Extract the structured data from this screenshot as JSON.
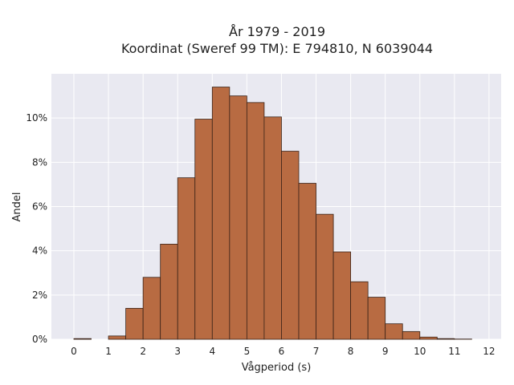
{
  "chart_data": {
    "type": "bar",
    "title": "År 1979 - 2019",
    "subtitle": "Koordinat (Sweref 99 TM): E 794810, N 6039044",
    "xlabel": "Vågperiod (s)",
    "ylabel": "Andel",
    "xlim": [
      -0.65,
      12.35
    ],
    "ylim": [
      0,
      0.12
    ],
    "xticks": [
      0,
      1,
      2,
      3,
      4,
      5,
      6,
      7,
      8,
      9,
      10,
      11,
      12
    ],
    "xtick_labels": [
      "0",
      "1",
      "2",
      "3",
      "4",
      "5",
      "6",
      "7",
      "8",
      "9",
      "10",
      "11",
      "12"
    ],
    "yticks": [
      0,
      0.02,
      0.04,
      0.06,
      0.08,
      0.1
    ],
    "ytick_labels": [
      "0%",
      "2%",
      "4%",
      "6%",
      "8%",
      "10%"
    ],
    "grid": true,
    "bin_width": 0.5,
    "bins": [
      {
        "x0": 0.0,
        "x1": 0.5,
        "value": 0.0003
      },
      {
        "x0": 0.5,
        "x1": 1.0,
        "value": 0.0
      },
      {
        "x0": 1.0,
        "x1": 1.5,
        "value": 0.0015
      },
      {
        "x0": 1.5,
        "x1": 2.0,
        "value": 0.014
      },
      {
        "x0": 2.0,
        "x1": 2.5,
        "value": 0.028
      },
      {
        "x0": 2.5,
        "x1": 3.0,
        "value": 0.043
      },
      {
        "x0": 3.0,
        "x1": 3.5,
        "value": 0.073
      },
      {
        "x0": 3.5,
        "x1": 4.0,
        "value": 0.0995
      },
      {
        "x0": 4.0,
        "x1": 4.5,
        "value": 0.114
      },
      {
        "x0": 4.5,
        "x1": 5.0,
        "value": 0.11
      },
      {
        "x0": 5.0,
        "x1": 5.5,
        "value": 0.107
      },
      {
        "x0": 5.5,
        "x1": 6.0,
        "value": 0.1005
      },
      {
        "x0": 6.0,
        "x1": 6.5,
        "value": 0.085
      },
      {
        "x0": 6.5,
        "x1": 7.0,
        "value": 0.0705
      },
      {
        "x0": 7.0,
        "x1": 7.5,
        "value": 0.0565
      },
      {
        "x0": 7.5,
        "x1": 8.0,
        "value": 0.0395
      },
      {
        "x0": 8.0,
        "x1": 8.5,
        "value": 0.026
      },
      {
        "x0": 8.5,
        "x1": 9.0,
        "value": 0.019
      },
      {
        "x0": 9.0,
        "x1": 9.5,
        "value": 0.007
      },
      {
        "x0": 9.5,
        "x1": 10.0,
        "value": 0.0035
      },
      {
        "x0": 10.0,
        "x1": 10.5,
        "value": 0.001
      },
      {
        "x0": 10.5,
        "x1": 11.0,
        "value": 0.0003
      },
      {
        "x0": 11.0,
        "x1": 11.5,
        "value": 0.0001
      }
    ],
    "colors": {
      "bar_fill": "#b86b42",
      "bar_edge": "#3a2318",
      "plot_bg": "#e9e9f1",
      "grid": "#ffffff"
    }
  }
}
